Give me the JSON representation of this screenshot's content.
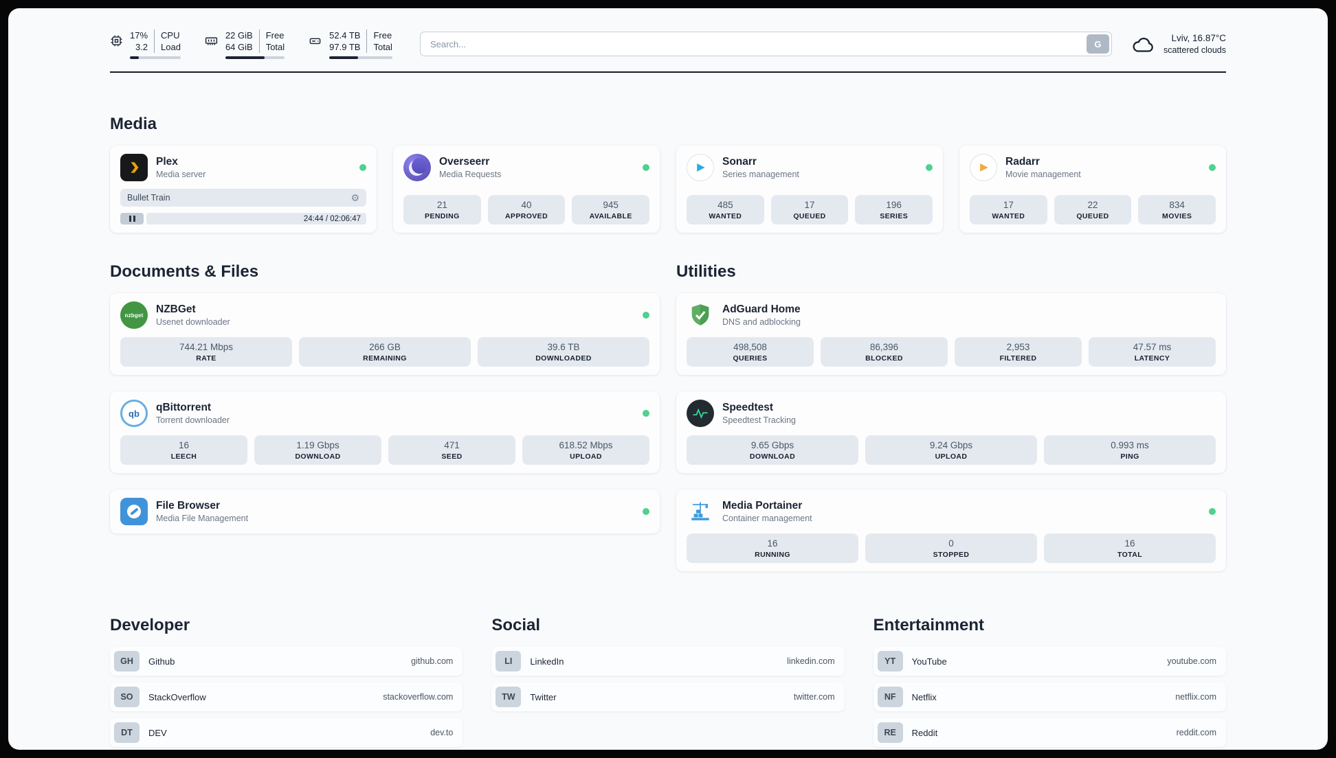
{
  "icons": {
    "gear": "⚙",
    "nzbget_label": "nzbget",
    "qb_label": "qb"
  },
  "header": {
    "cpu": {
      "value_top": "17%",
      "value_bottom": "3.2",
      "label_top": "CPU",
      "label_bottom": "Load",
      "progress": 17
    },
    "ram": {
      "value_top": "22 GiB",
      "value_bottom": "64 GiB",
      "label_top": "Free",
      "label_bottom": "Total",
      "progress": 66
    },
    "disk": {
      "value_top": "52.4 TB",
      "value_bottom": "97.9 TB",
      "label_top": "Free",
      "label_bottom": "Total",
      "progress": 46
    },
    "search": {
      "placeholder": "Search...",
      "button_label": "G"
    },
    "weather": {
      "location": "Lviv, 16.87°C",
      "condition": "scattered clouds"
    }
  },
  "sections": {
    "media": {
      "title": "Media",
      "cards": [
        {
          "name": "Plex",
          "subtitle": "Media server",
          "online": true,
          "player": {
            "track": "Bullet Train",
            "time_display": "24:44 / 02:06:47"
          }
        },
        {
          "name": "Overseerr",
          "subtitle": "Media Requests",
          "online": true,
          "stats": [
            {
              "value": "21",
              "label": "PENDING"
            },
            {
              "value": "40",
              "label": "APPROVED"
            },
            {
              "value": "945",
              "label": "AVAILABLE"
            }
          ]
        },
        {
          "name": "Sonarr",
          "subtitle": "Series management",
          "online": true,
          "stats": [
            {
              "value": "485",
              "label": "WANTED"
            },
            {
              "value": "17",
              "label": "QUEUED"
            },
            {
              "value": "196",
              "label": "SERIES"
            }
          ]
        },
        {
          "name": "Radarr",
          "subtitle": "Movie management",
          "online": true,
          "stats": [
            {
              "value": "17",
              "label": "WANTED"
            },
            {
              "value": "22",
              "label": "QUEUED"
            },
            {
              "value": "834",
              "label": "MOVIES"
            }
          ]
        }
      ]
    },
    "documents": {
      "title": "Documents & Files",
      "cards": [
        {
          "name": "NZBGet",
          "subtitle": "Usenet downloader",
          "online": true,
          "stats": [
            {
              "value": "744.21 Mbps",
              "label": "RATE"
            },
            {
              "value": "266 GB",
              "label": "REMAINING"
            },
            {
              "value": "39.6 TB",
              "label": "DOWNLOADED"
            }
          ]
        },
        {
          "name": "qBittorrent",
          "subtitle": "Torrent downloader",
          "online": true,
          "stats": [
            {
              "value": "16",
              "label": "LEECH"
            },
            {
              "value": "1.19 Gbps",
              "label": "DOWNLOAD"
            },
            {
              "value": "471",
              "label": "SEED"
            },
            {
              "value": "618.52 Mbps",
              "label": "UPLOAD"
            }
          ]
        },
        {
          "name": "File Browser",
          "subtitle": "Media File Management",
          "online": true
        }
      ]
    },
    "utilities": {
      "title": "Utilities",
      "cards": [
        {
          "name": "AdGuard Home",
          "subtitle": "DNS and adblocking",
          "stats": [
            {
              "value": "498,508",
              "label": "QUERIES"
            },
            {
              "value": "86,396",
              "label": "BLOCKED"
            },
            {
              "value": "2,953",
              "label": "FILTERED"
            },
            {
              "value": "47.57 ms",
              "label": "LATENCY"
            }
          ]
        },
        {
          "name": "Speedtest",
          "subtitle": "Speedtest Tracking",
          "stats": [
            {
              "value": "9.65 Gbps",
              "label": "DOWNLOAD"
            },
            {
              "value": "9.24 Gbps",
              "label": "UPLOAD"
            },
            {
              "value": "0.993 ms",
              "label": "PING"
            }
          ]
        },
        {
          "name": "Media Portainer",
          "subtitle": "Container management",
          "online": true,
          "stats": [
            {
              "value": "16",
              "label": "RUNNING"
            },
            {
              "value": "0",
              "label": "STOPPED"
            },
            {
              "value": "16",
              "label": "TOTAL"
            }
          ]
        }
      ]
    },
    "bookmarks": [
      {
        "title": "Developer",
        "items": [
          {
            "abbr": "GH",
            "name": "Github",
            "url": "github.com"
          },
          {
            "abbr": "SO",
            "name": "StackOverflow",
            "url": "stackoverflow.com"
          },
          {
            "abbr": "DT",
            "name": "DEV",
            "url": "dev.to"
          }
        ]
      },
      {
        "title": "Social",
        "items": [
          {
            "abbr": "LI",
            "name": "LinkedIn",
            "url": "linkedin.com"
          },
          {
            "abbr": "TW",
            "name": "Twitter",
            "url": "twitter.com"
          }
        ]
      },
      {
        "title": "Entertainment",
        "items": [
          {
            "abbr": "YT",
            "name": "YouTube",
            "url": "youtube.com"
          },
          {
            "abbr": "NF",
            "name": "Netflix",
            "url": "netflix.com"
          },
          {
            "abbr": "RE",
            "name": "Reddit",
            "url": "reddit.com"
          }
        ]
      }
    ]
  }
}
